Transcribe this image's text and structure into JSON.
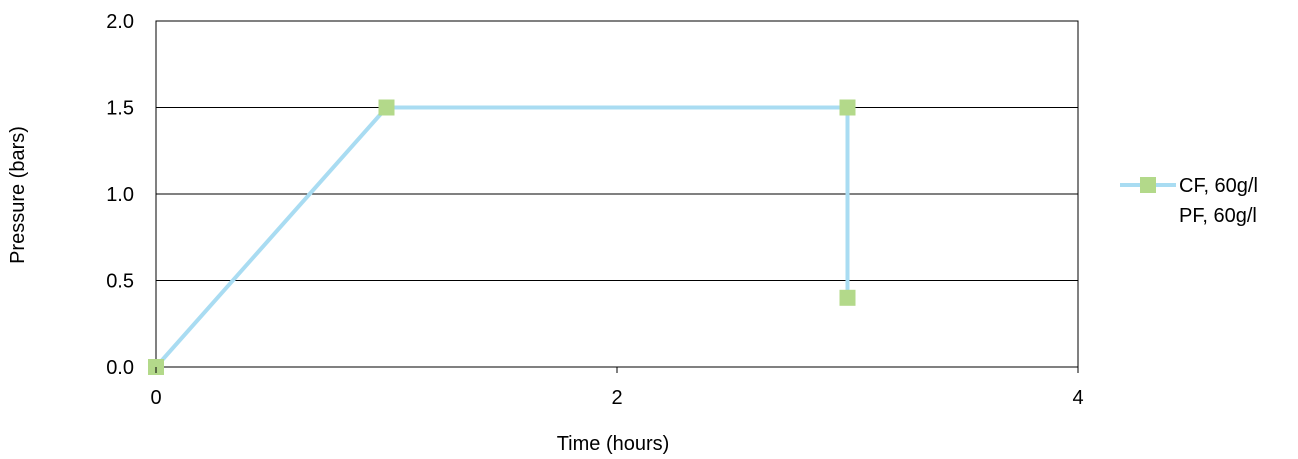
{
  "chart_data": {
    "type": "line",
    "xlabel": "Time (hours)",
    "ylabel": "Pressure (bars)",
    "xlim": [
      0,
      4
    ],
    "ylim": [
      0,
      2.0
    ],
    "x_ticks": [
      0,
      2,
      4
    ],
    "x_tick_labels": [
      "0",
      "2",
      "4"
    ],
    "y_ticks": [
      0,
      0.5,
      1.0,
      1.5,
      2.0
    ],
    "y_tick_labels": [
      "0.0",
      "0.5",
      "1.0",
      "1.5",
      "2.0"
    ],
    "grid": "horizontal",
    "legend_position": "right",
    "series": [
      {
        "name": "CF, 60g/l",
        "line_color": "#A9DCF2",
        "marker_color": "#B3D98A",
        "marker": "square",
        "points": [
          {
            "x": 0,
            "y": 0.0
          },
          {
            "x": 1,
            "y": 1.5
          },
          {
            "x": 3,
            "y": 1.5
          },
          {
            "x": 3,
            "y": 0.4
          }
        ]
      },
      {
        "name": "PF, 60g/l",
        "line_color": "",
        "marker_color": "",
        "marker": "none",
        "points": []
      }
    ]
  }
}
